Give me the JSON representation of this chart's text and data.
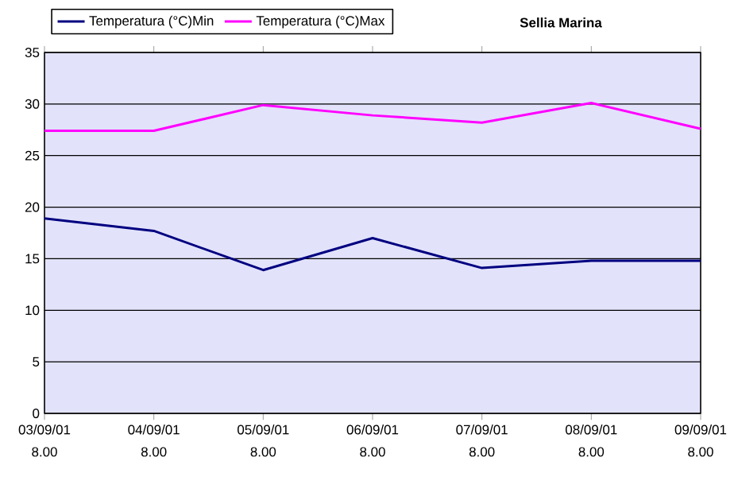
{
  "chart_data": {
    "type": "line",
    "title": "Sellia Marina",
    "categories": [
      "03/09/01 8.00",
      "04/09/01 8.00",
      "05/09/01 8.00",
      "06/09/01 8.00",
      "07/09/01 8.00",
      "08/09/01 8.00",
      "09/09/01 8.00"
    ],
    "series": [
      {
        "name": "Temperatura (°C)Min",
        "color": "#000080",
        "values": [
          18.9,
          17.7,
          13.9,
          17.0,
          14.1,
          14.8,
          14.8
        ]
      },
      {
        "name": "Temperatura (°C)Max",
        "color": "#ff00ff",
        "values": [
          27.4,
          27.4,
          29.9,
          28.9,
          28.2,
          30.1,
          27.6
        ]
      }
    ],
    "ylim": [
      0,
      35
    ],
    "yticks": [
      0,
      5,
      10,
      15,
      20,
      25,
      30,
      35
    ],
    "grid": "y",
    "legend": "top left",
    "marker": "none",
    "line_style": "solid"
  }
}
